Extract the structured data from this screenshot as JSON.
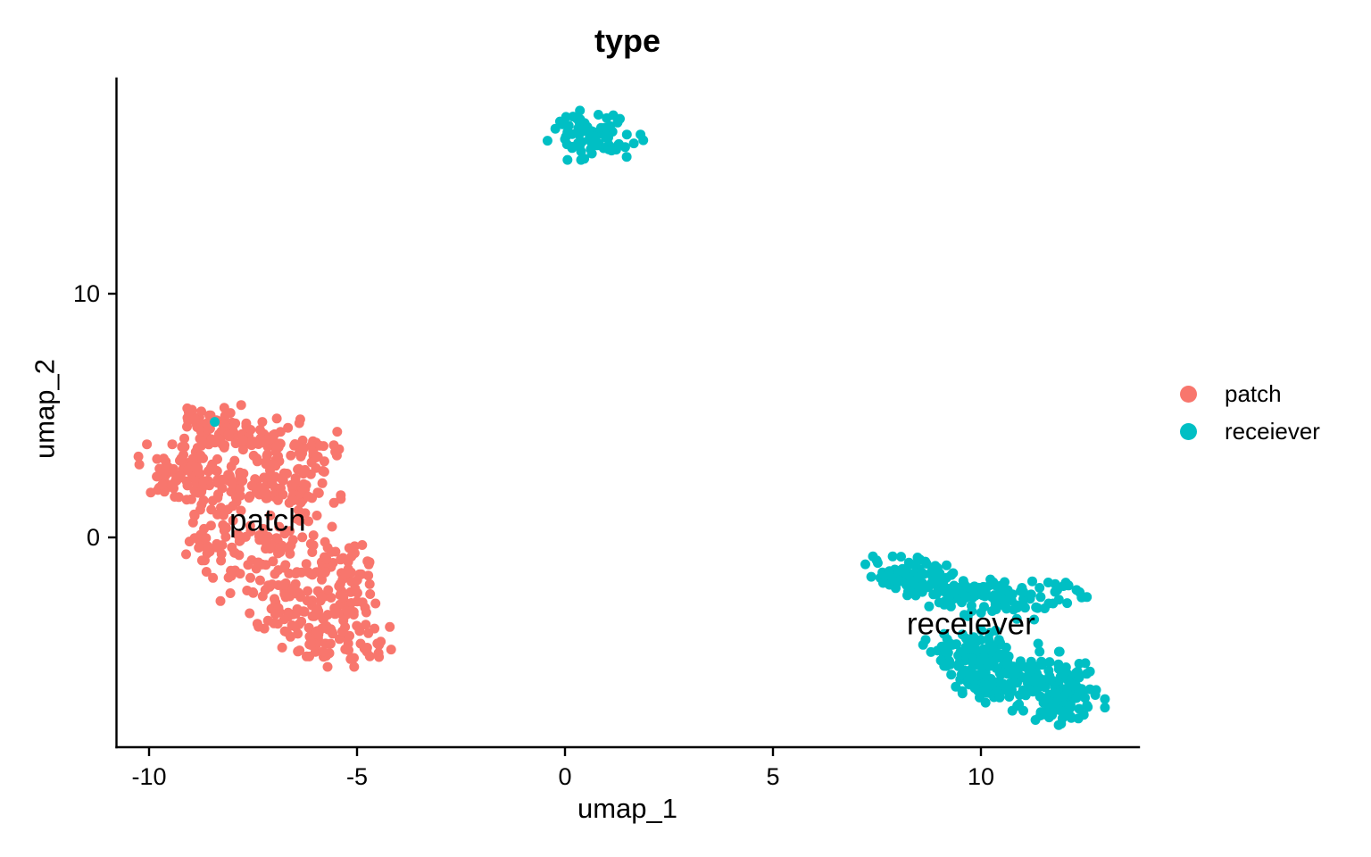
{
  "title": "type",
  "chart_data": {
    "type": "scatter",
    "title": "type",
    "xlabel": "umap_1",
    "ylabel": "umap_2",
    "x_ticks": [
      -10,
      -5,
      0,
      5,
      10
    ],
    "y_ticks": [
      0,
      10
    ],
    "xlim": [
      -10.8,
      13.8
    ],
    "ylim": [
      -8.6,
      18.8
    ],
    "grid": false,
    "legend_position": "right",
    "point_radius_px": 5.5,
    "seed": 7,
    "axis_color": "#000000",
    "text_color": "#000000",
    "series": [
      {
        "name": "patch",
        "color": "#F8766D",
        "blobs": [
          {
            "cx": -8.5,
            "cy": 4.6,
            "sx": 0.38,
            "sy": 0.45,
            "n": 45
          },
          {
            "cx": -7.3,
            "cy": 4.0,
            "sx": 0.75,
            "sy": 0.4,
            "n": 55
          },
          {
            "cx": -6.0,
            "cy": 3.7,
            "sx": 0.45,
            "sy": 0.45,
            "n": 30
          },
          {
            "cx": -9.35,
            "cy": 2.5,
            "sx": 0.42,
            "sy": 0.6,
            "n": 55
          },
          {
            "cx": -7.9,
            "cy": 2.5,
            "sx": 0.75,
            "sy": 0.65,
            "n": 90
          },
          {
            "cx": -6.6,
            "cy": 2.0,
            "sx": 0.55,
            "sy": 0.6,
            "n": 55
          },
          {
            "cx": -8.45,
            "cy": 0.3,
            "sx": 0.3,
            "sy": 0.75,
            "n": 35
          },
          {
            "cx": -7.3,
            "cy": 0.2,
            "sx": 0.7,
            "sy": 0.6,
            "n": 30
          },
          {
            "cx": -7.2,
            "cy": -1.4,
            "sx": 0.65,
            "sy": 0.75,
            "n": 65
          },
          {
            "cx": -5.3,
            "cy": -1.3,
            "sx": 0.45,
            "sy": 0.85,
            "n": 55
          },
          {
            "cx": -6.4,
            "cy": -2.8,
            "sx": 0.6,
            "sy": 0.6,
            "n": 65
          },
          {
            "cx": -5.5,
            "cy": -4.1,
            "sx": 0.6,
            "sy": 0.55,
            "n": 70
          }
        ],
        "extra_points": [
          {
            "x": -5.6,
            "y": 0.44
          }
        ]
      },
      {
        "name": "receiever",
        "color": "#00BFC4",
        "blobs": [
          {
            "cx": 0.45,
            "cy": 16.95,
            "sx": 0.42,
            "sy": 0.35,
            "n": 30
          },
          {
            "cx": 1.05,
            "cy": 16.45,
            "sx": 0.5,
            "sy": 0.38,
            "n": 32
          },
          {
            "cx": 0.35,
            "cy": 16.15,
            "sx": 0.35,
            "sy": 0.3,
            "n": 20
          },
          {
            "cx": 8.1,
            "cy": -1.55,
            "sx": 0.4,
            "sy": 0.35,
            "n": 50
          },
          {
            "cx": 8.9,
            "cy": -1.95,
            "sx": 0.5,
            "sy": 0.4,
            "n": 55
          },
          {
            "cx": 9.8,
            "cy": -2.35,
            "sx": 0.55,
            "sy": 0.4,
            "n": 45
          },
          {
            "cx": 10.6,
            "cy": -2.3,
            "sx": 0.35,
            "sy": 0.3,
            "n": 15
          },
          {
            "cx": 10.9,
            "cy": -2.6,
            "sx": 0.35,
            "sy": 0.35,
            "n": 25
          },
          {
            "cx": 11.9,
            "cy": -2.05,
            "sx": 0.4,
            "sy": 0.3,
            "n": 18
          },
          {
            "cx": 9.6,
            "cy": -4.7,
            "sx": 0.45,
            "sy": 0.45,
            "n": 55
          },
          {
            "cx": 10.4,
            "cy": -5.3,
            "sx": 0.55,
            "sy": 0.5,
            "n": 75
          },
          {
            "cx": 11.3,
            "cy": -5.9,
            "sx": 0.6,
            "sy": 0.55,
            "n": 85
          },
          {
            "cx": 12.1,
            "cy": -6.5,
            "sx": 0.4,
            "sy": 0.45,
            "n": 50
          },
          {
            "cx": 10.0,
            "cy": -5.9,
            "sx": 0.4,
            "sy": 0.4,
            "n": 30
          },
          {
            "cx": 11.9,
            "cy": -7.2,
            "sx": 0.35,
            "sy": 0.3,
            "n": 20
          }
        ],
        "extra_points": [
          {
            "x": -8.42,
            "y": 4.74
          },
          {
            "x": 8.67,
            "y": -4.2
          }
        ]
      }
    ],
    "in_plot_labels": [
      {
        "text": "patch",
        "x": -7.15,
        "y": 0.7
      },
      {
        "text": "receiever",
        "x": 9.76,
        "y": -3.55
      }
    ]
  },
  "legend": {
    "items": [
      {
        "label": "patch",
        "color": "#F8766D"
      },
      {
        "label": "receiever",
        "color": "#00BFC4"
      }
    ]
  }
}
